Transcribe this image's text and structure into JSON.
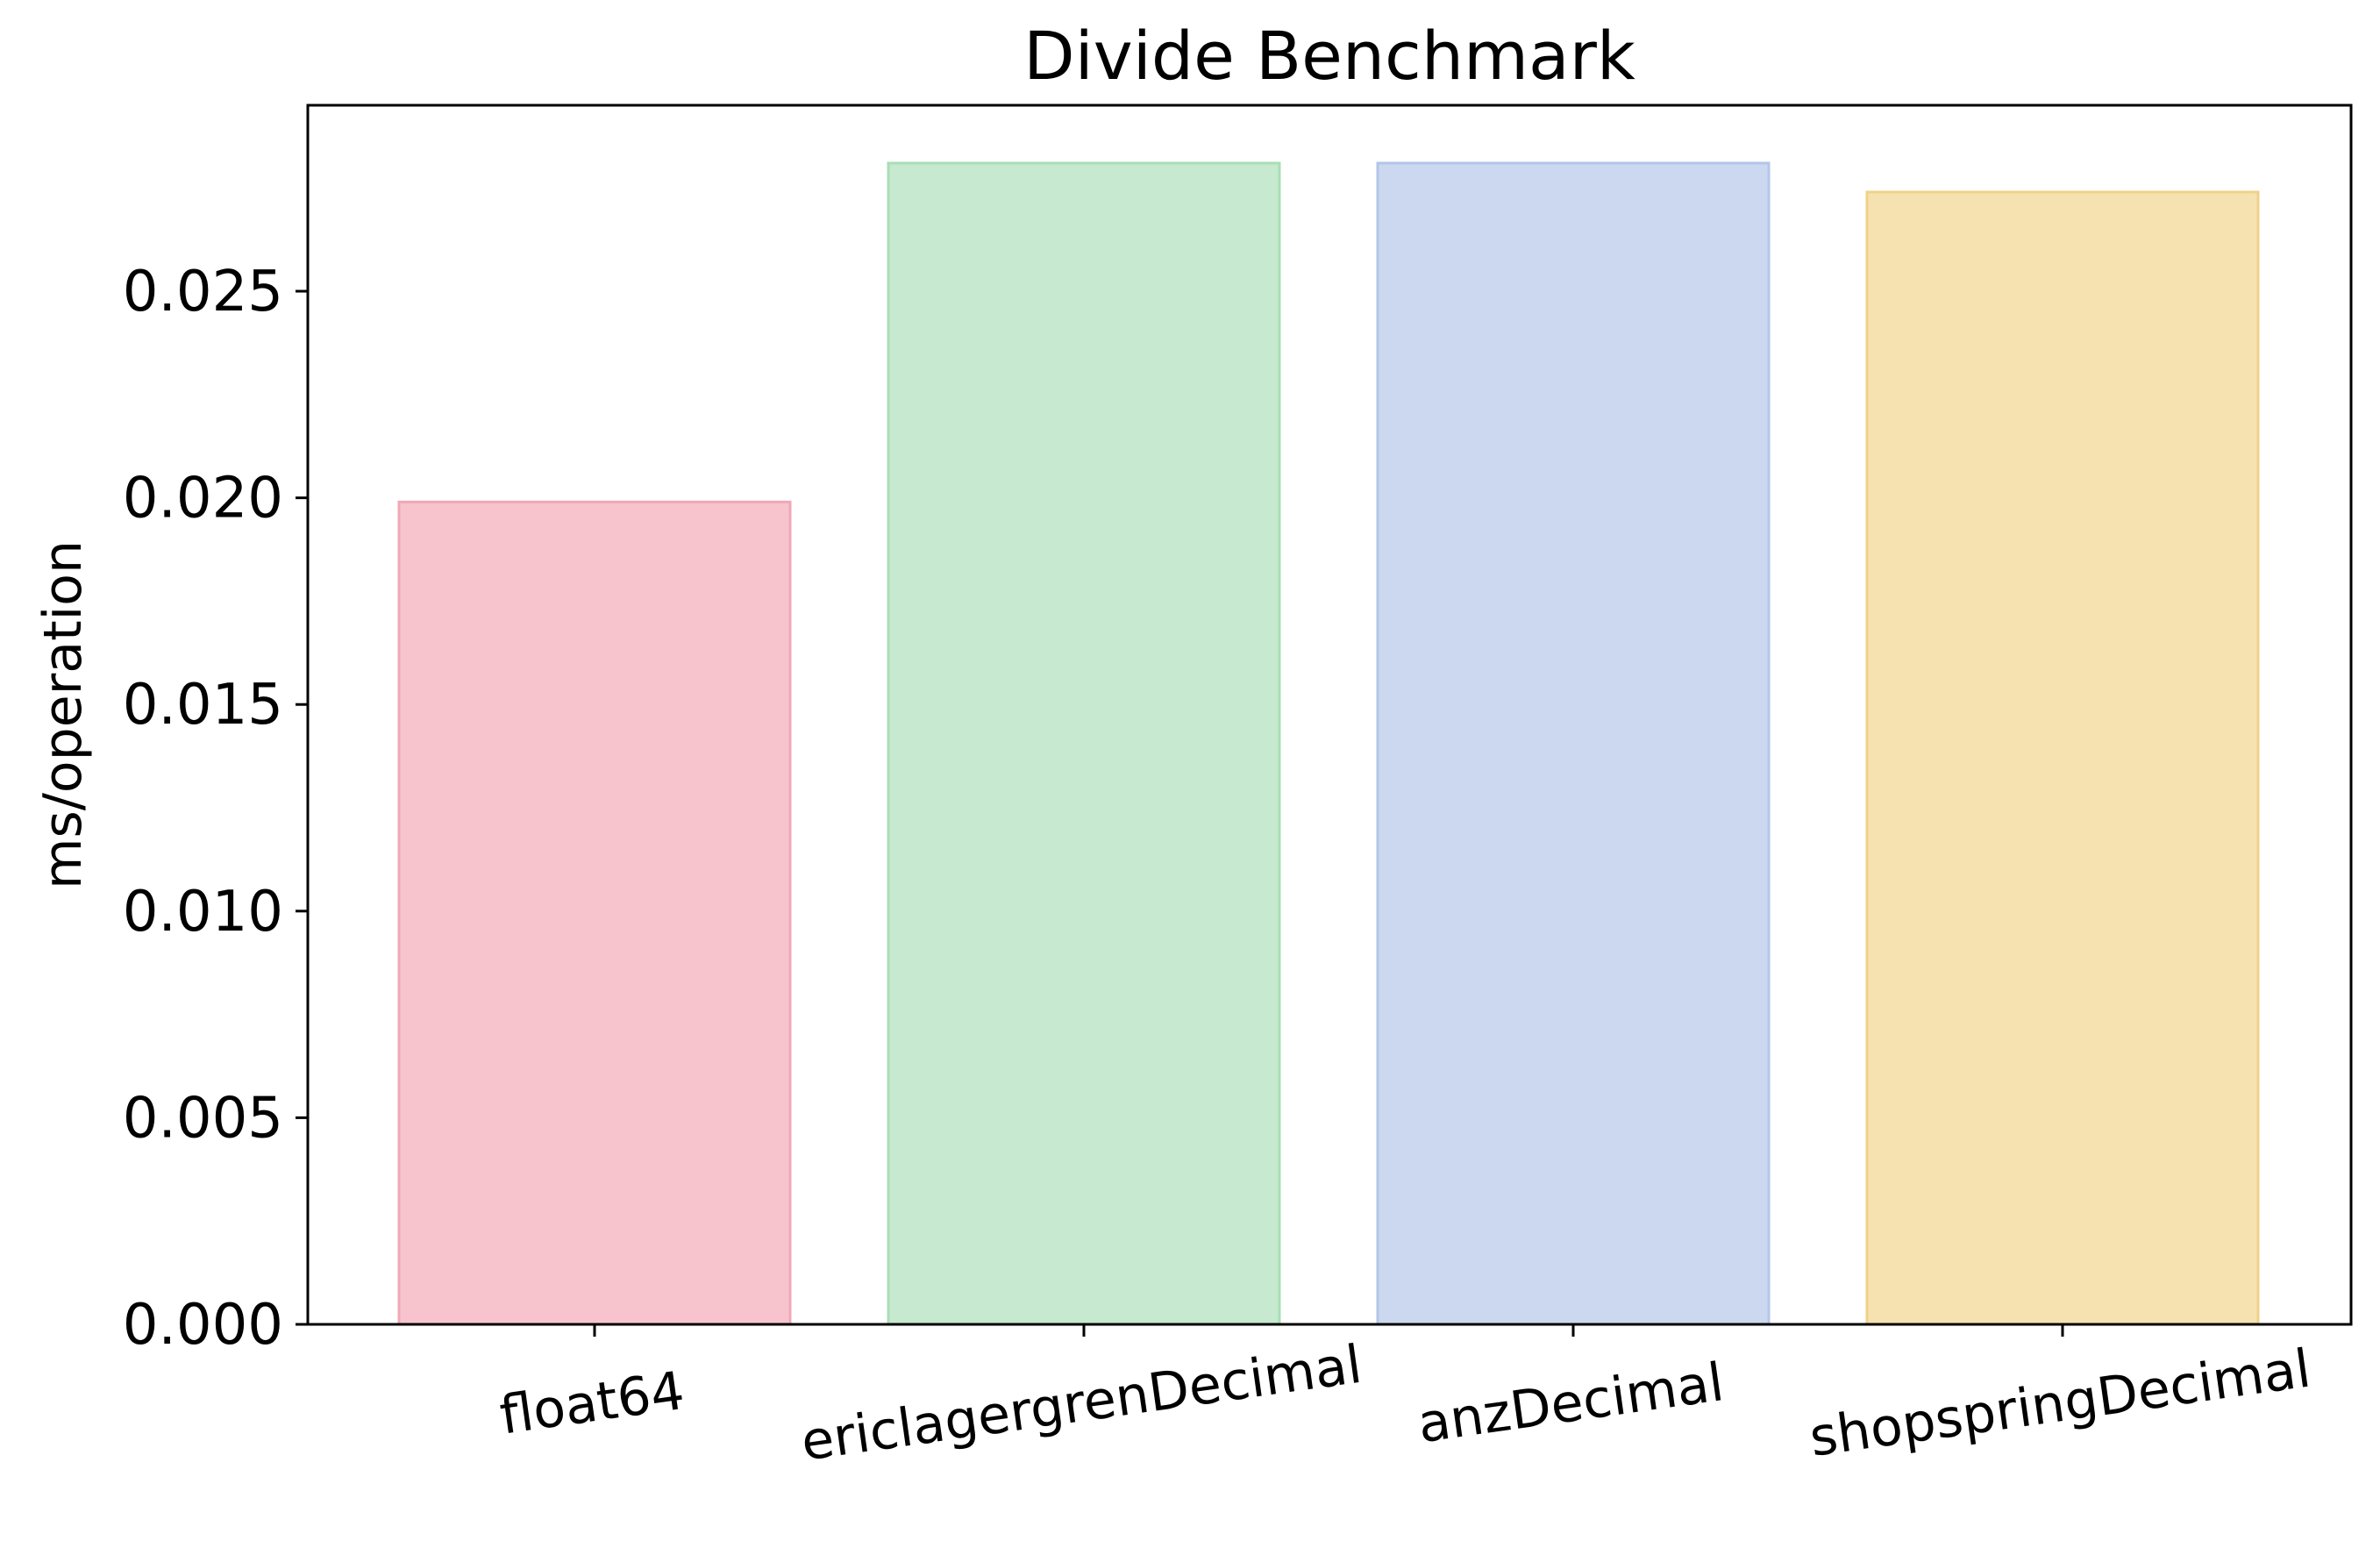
{
  "chart_data": {
    "type": "bar",
    "title": "Divide Benchmark",
    "xlabel": "",
    "ylabel": "ms/operation",
    "categories": [
      "float64",
      "ericlagergrenDecimal",
      "anzDecimal",
      "shopspringDecimal"
    ],
    "values": [
      0.0199,
      0.0281,
      0.0281,
      0.0274
    ],
    "ylim": [
      0,
      0.0295
    ],
    "yticks": [
      0.0,
      0.005,
      0.01,
      0.015,
      0.02,
      0.025
    ],
    "ytick_labels": [
      "0.000",
      "0.005",
      "0.010",
      "0.015",
      "0.020",
      "0.025"
    ],
    "bar_colors": [
      "#F7C4CE",
      "#C6E9CF",
      "#CCD8EF",
      "#F6E2B0"
    ],
    "bar_edge_colors": [
      "#F0A8B6",
      "#A9DDB6",
      "#B3C6E8",
      "#F0D18A"
    ],
    "grid": false,
    "legend": "none",
    "xtick_rotation_deg": -8
  }
}
